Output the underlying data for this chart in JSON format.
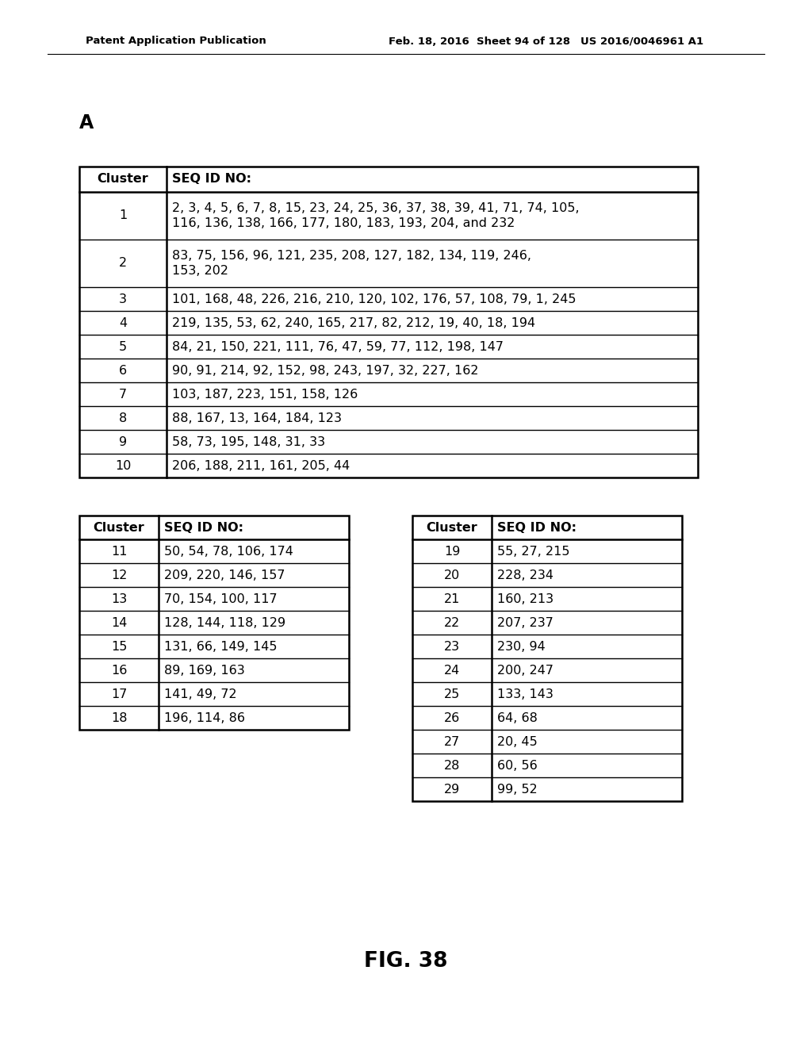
{
  "header_text_left": "Patent Application Publication",
  "header_text_mid": "Feb. 18, 2016  Sheet 94 of 128",
  "header_text_right": "US 2016/0046961 A1",
  "section_label": "A",
  "fig_label": "FIG. 38",
  "background_color": "#ffffff",
  "table1": {
    "headers": [
      "Cluster",
      "SEQ ID NO:"
    ],
    "rows": [
      [
        "1",
        "2, 3, 4, 5, 6, 7, 8, 15, 23, 24, 25, 36, 37, 38, 39, 41, 71, 74, 105,\n116, 136, 138, 166, 177, 180, 183, 193, 204, and 232"
      ],
      [
        "2",
        "83, 75, 156, 96, 121, 235, 208, 127, 182, 134, 119, 246,\n153, 202"
      ],
      [
        "3",
        "101, 168, 48, 226, 216, 210, 120, 102, 176, 57, 108, 79, 1, 245"
      ],
      [
        "4",
        "219, 135, 53, 62, 240, 165, 217, 82, 212, 19, 40, 18, 194"
      ],
      [
        "5",
        "84, 21, 150, 221, 111, 76, 47, 59, 77, 112, 198, 147"
      ],
      [
        "6",
        "90, 91, 214, 92, 152, 98, 243, 197, 32, 227, 162"
      ],
      [
        "7",
        "103, 187, 223, 151, 158, 126"
      ],
      [
        "8",
        "88, 167, 13, 164, 184, 123"
      ],
      [
        "9",
        "58, 73, 195, 148, 31, 33"
      ],
      [
        "10",
        "206, 188, 211, 161, 205, 44"
      ]
    ]
  },
  "table2": {
    "headers": [
      "Cluster",
      "SEQ ID NO:"
    ],
    "rows": [
      [
        "11",
        "50, 54, 78, 106, 174"
      ],
      [
        "12",
        "209, 220, 146, 157"
      ],
      [
        "13",
        "70, 154, 100, 117"
      ],
      [
        "14",
        "128, 144, 118, 129"
      ],
      [
        "15",
        "131, 66, 149, 145"
      ],
      [
        "16",
        "89, 169, 163"
      ],
      [
        "17",
        "141, 49, 72"
      ],
      [
        "18",
        "196, 114, 86"
      ]
    ]
  },
  "table3": {
    "headers": [
      "Cluster",
      "SEQ ID NO:"
    ],
    "rows": [
      [
        "19",
        "55, 27, 215"
      ],
      [
        "20",
        "228, 234"
      ],
      [
        "21",
        "160, 213"
      ],
      [
        "22",
        "207, 237"
      ],
      [
        "23",
        "230, 94"
      ],
      [
        "24",
        "200, 247"
      ],
      [
        "25",
        "133, 143"
      ],
      [
        "26",
        "64, 68"
      ],
      [
        "27",
        "20, 45"
      ],
      [
        "28",
        "60, 56"
      ],
      [
        "29",
        "99, 52"
      ]
    ]
  }
}
